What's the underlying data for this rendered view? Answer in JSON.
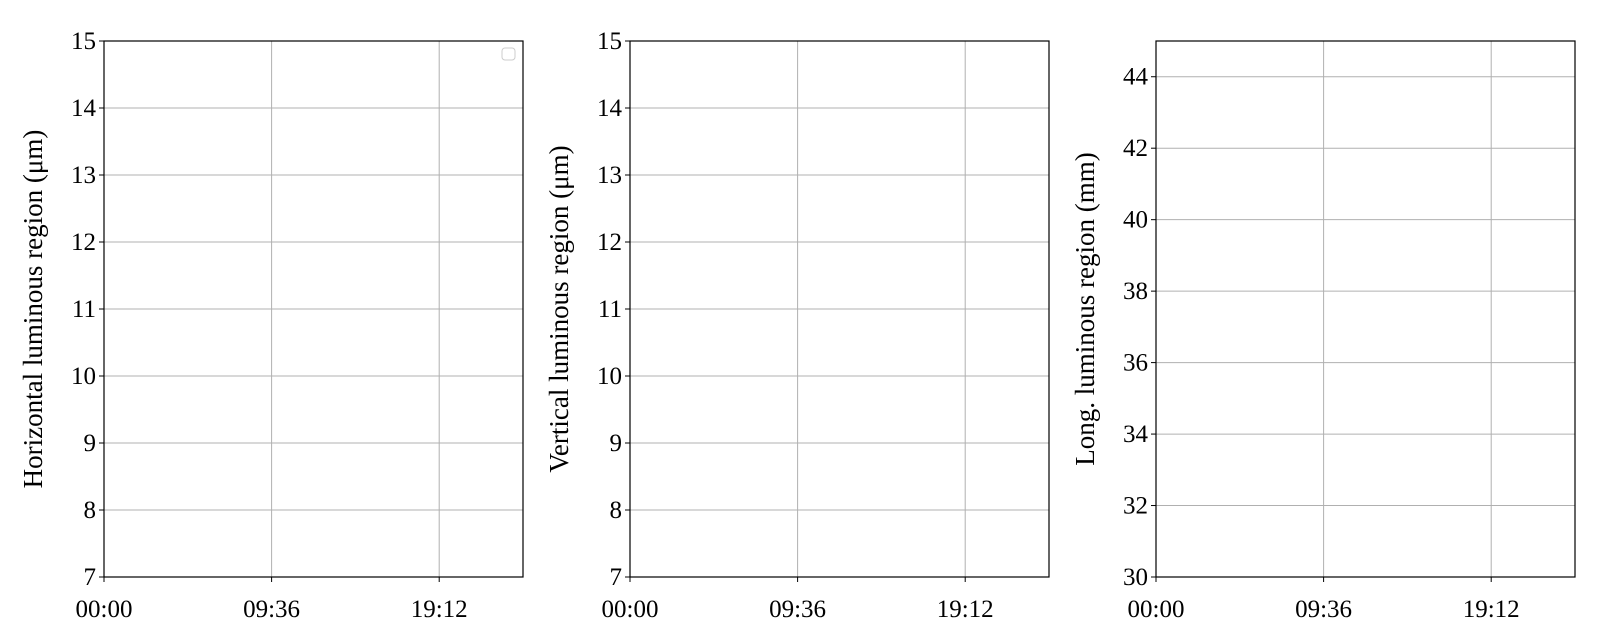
{
  "chart_data": [
    {
      "type": "line",
      "title": "",
      "xlabel": "",
      "ylabel": "Horizontal luminous region (μm)",
      "xlim": [
        "00:00",
        "24:00"
      ],
      "ylim": [
        7,
        15
      ],
      "xticks": [
        "00:00",
        "09:36",
        "19:12"
      ],
      "yticks": [
        7,
        8,
        9,
        10,
        11,
        12,
        13,
        14,
        15
      ],
      "grid": true,
      "legend": {
        "placement": "top-right",
        "entries": []
      },
      "series": []
    },
    {
      "type": "line",
      "title": "",
      "xlabel": "",
      "ylabel": "Vertical luminous region (μm)",
      "xlim": [
        "00:00",
        "24:00"
      ],
      "ylim": [
        7,
        15
      ],
      "xticks": [
        "00:00",
        "09:36",
        "19:12"
      ],
      "yticks": [
        7,
        8,
        9,
        10,
        11,
        12,
        13,
        14,
        15
      ],
      "grid": true,
      "series": []
    },
    {
      "type": "line",
      "title": "",
      "xlabel": "",
      "ylabel": "Long. luminous region (mm)",
      "xlim": [
        "00:00",
        "24:00"
      ],
      "ylim": [
        30,
        45
      ],
      "xticks": [
        "00:00",
        "09:36",
        "19:12"
      ],
      "yticks": [
        30,
        32,
        34,
        36,
        38,
        40,
        42,
        44
      ],
      "grid": true,
      "series": []
    }
  ],
  "colors": {
    "grid": "#b0b0b0",
    "axes": "#000000"
  }
}
